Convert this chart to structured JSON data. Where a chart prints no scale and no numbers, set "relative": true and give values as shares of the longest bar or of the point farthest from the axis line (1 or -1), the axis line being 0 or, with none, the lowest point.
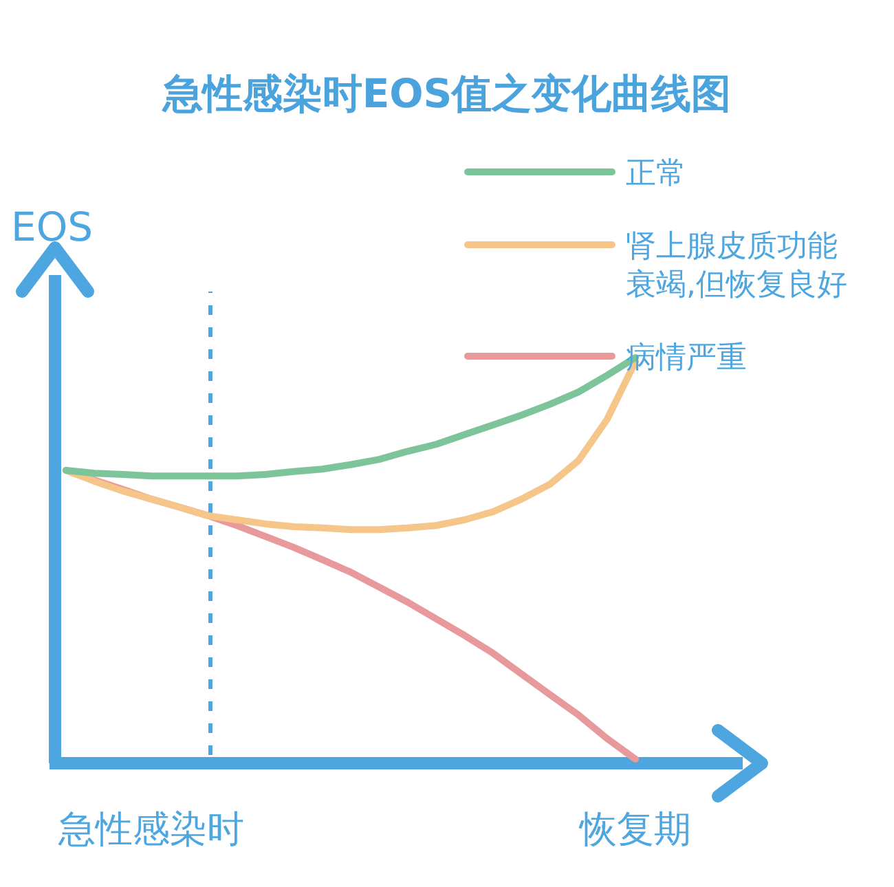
{
  "chart_data": {
    "type": "line",
    "title": "急性感染时EOS值之变化曲线图",
    "ylabel": "EOS",
    "relative": true,
    "legend": "top right",
    "categories": [
      null,
      null,
      null,
      "急性感染时",
      null,
      null,
      null,
      null,
      null,
      null,
      null,
      null,
      null,
      null,
      null,
      null,
      null,
      null,
      null,
      null,
      "恢复期"
    ],
    "series": [
      {
        "name": "正常",
        "color": "#7dc49a",
        "values": [
          0.722,
          0.715,
          0.712,
          0.708,
          0.708,
          0.708,
          0.708,
          0.712,
          0.719,
          0.725,
          0.736,
          0.749,
          0.769,
          0.786,
          0.81,
          0.834,
          0.858,
          0.885,
          0.915,
          0.956,
          1
        ]
      },
      {
        "name": "肾上腺皮质功能衰竭,但恢复良好",
        "color": "#f5c58a",
        "values": [
          0.722,
          0.695,
          0.671,
          0.651,
          0.631,
          0.61,
          0.6,
          0.59,
          0.583,
          0.58,
          0.576,
          0.576,
          0.58,
          0.586,
          0.6,
          0.62,
          0.651,
          0.688,
          0.746,
          0.847,
          0.99
        ]
      },
      {
        "name": "病情严重",
        "color": "#e8999b",
        "values": [
          0.722,
          0.698,
          0.675,
          0.651,
          0.631,
          0.61,
          0.586,
          0.559,
          0.532,
          0.502,
          0.471,
          0.434,
          0.397,
          0.356,
          0.315,
          0.271,
          0.22,
          0.169,
          0.119,
          0.061,
          0.01
        ]
      }
    ]
  }
}
